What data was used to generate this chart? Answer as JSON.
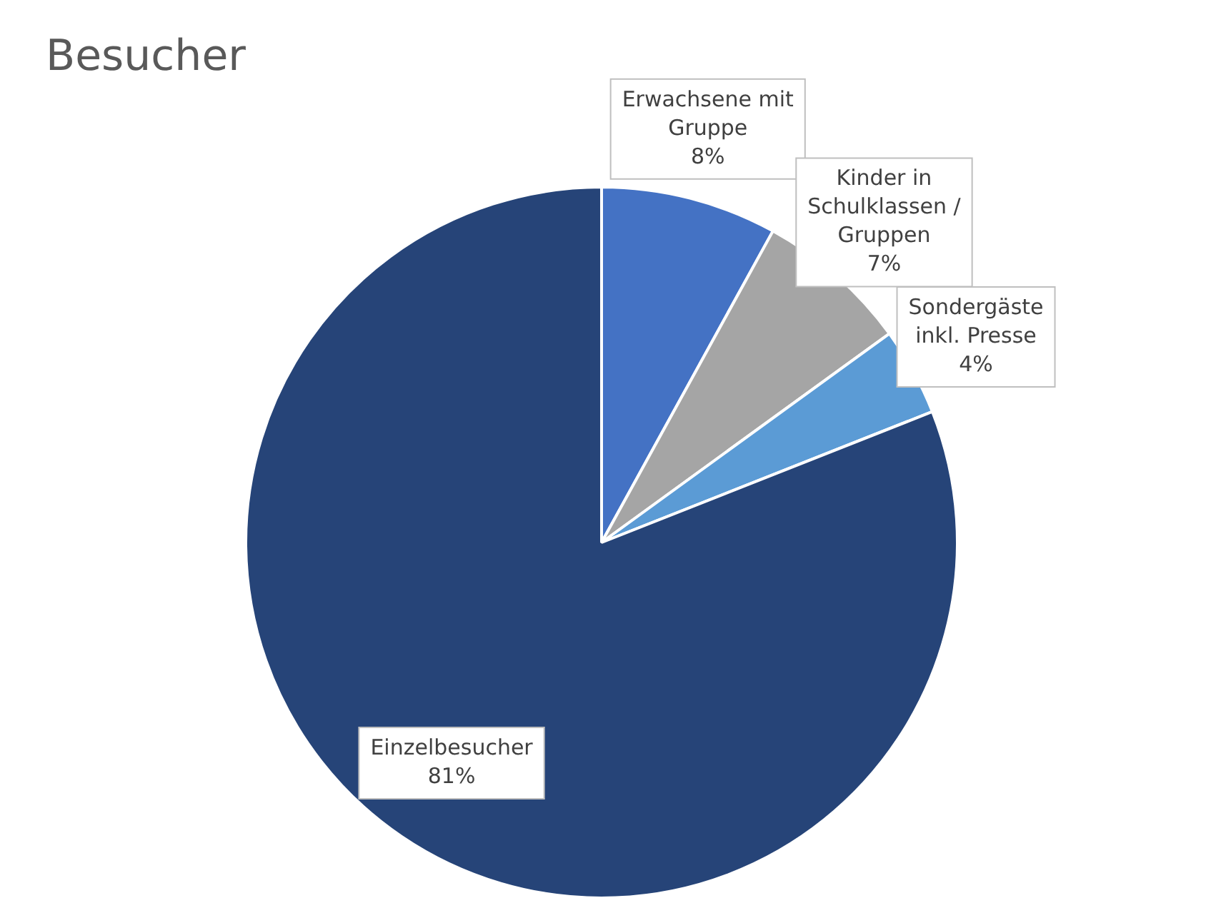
{
  "chart_data": {
    "type": "pie",
    "title": "Besucher",
    "categories": [
      "Erwachsene mit Gruppe",
      "Kinder in Schulklassen / Gruppen",
      "Sondergäste inkl. Presse",
      "Einzelbesucher"
    ],
    "values": [
      8,
      7,
      4,
      81
    ],
    "colors": [
      "#4472c4",
      "#a5a5a5",
      "#5b9bd5",
      "#264478"
    ],
    "value_labels": [
      "8%",
      "7%",
      "4%",
      "81%"
    ],
    "legend": false
  }
}
